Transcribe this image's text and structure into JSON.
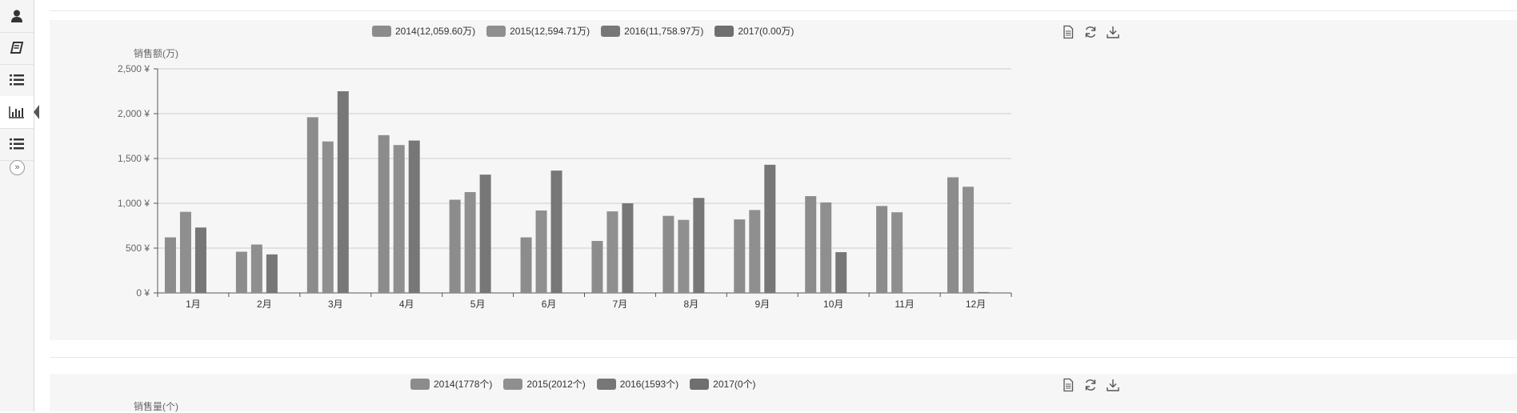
{
  "sidebar": {
    "items": [
      {
        "icon": "user-icon"
      },
      {
        "icon": "book-icon"
      },
      {
        "icon": "list-icon"
      },
      {
        "icon": "bar-chart-icon",
        "active": true
      },
      {
        "icon": "list-icon"
      }
    ],
    "expand_label": "»"
  },
  "colors": {
    "s2014": "#8c8c8c",
    "s2015": "#8f8f8f",
    "s2016": "#777777",
    "s2017": "#6f6f6f",
    "grid": "#cccccc",
    "axis": "#555555"
  },
  "chart1": {
    "legend": [
      "2014(12,059.60万)",
      "2015(12,594.71万)",
      "2016(11,758.97万)",
      "2017(0.00万)"
    ],
    "ylabel": "销售额(万)"
  },
  "chart2": {
    "legend": [
      "2014(1778个)",
      "2015(2012个)",
      "2016(1593个)",
      "2017(0个)"
    ],
    "ylabel": "销售量(个)"
  },
  "chart_data": [
    {
      "type": "bar",
      "ylabel": "销售额(万)",
      "categories": [
        "1月",
        "2月",
        "3月",
        "4月",
        "5月",
        "6月",
        "7月",
        "8月",
        "9月",
        "10月",
        "11月",
        "12月"
      ],
      "ytick_labels": [
        "0 ¥",
        "500 ¥",
        "1,000 ¥",
        "1,500 ¥",
        "2,000 ¥",
        "2,500 ¥"
      ],
      "ylim": [
        0,
        2500
      ],
      "grid": true,
      "legend_position": "top",
      "series": [
        {
          "name": "2014(12,059.60万)",
          "values": [
            620,
            460,
            1960,
            1760,
            1040,
            620,
            580,
            860,
            820,
            1080,
            970,
            1290
          ]
        },
        {
          "name": "2015(12,594.71万)",
          "values": [
            905,
            540,
            1690,
            1650,
            1125,
            920,
            910,
            815,
            925,
            1010,
            900,
            1185
          ]
        },
        {
          "name": "2016(11,758.97万)",
          "values": [
            730,
            430,
            2250,
            1700,
            1320,
            1365,
            1000,
            1060,
            1430,
            455,
            5,
            10
          ]
        },
        {
          "name": "2017(0.00万)",
          "values": [
            0,
            0,
            0,
            0,
            0,
            0,
            0,
            0,
            0,
            0,
            0,
            0
          ]
        }
      ]
    },
    {
      "type": "bar",
      "ylabel": "销售量(个)",
      "legend_position": "top",
      "series": [
        {
          "name": "2014(1778个)"
        },
        {
          "name": "2015(2012个)"
        },
        {
          "name": "2016(1593个)"
        },
        {
          "name": "2017(0个)"
        }
      ]
    }
  ]
}
